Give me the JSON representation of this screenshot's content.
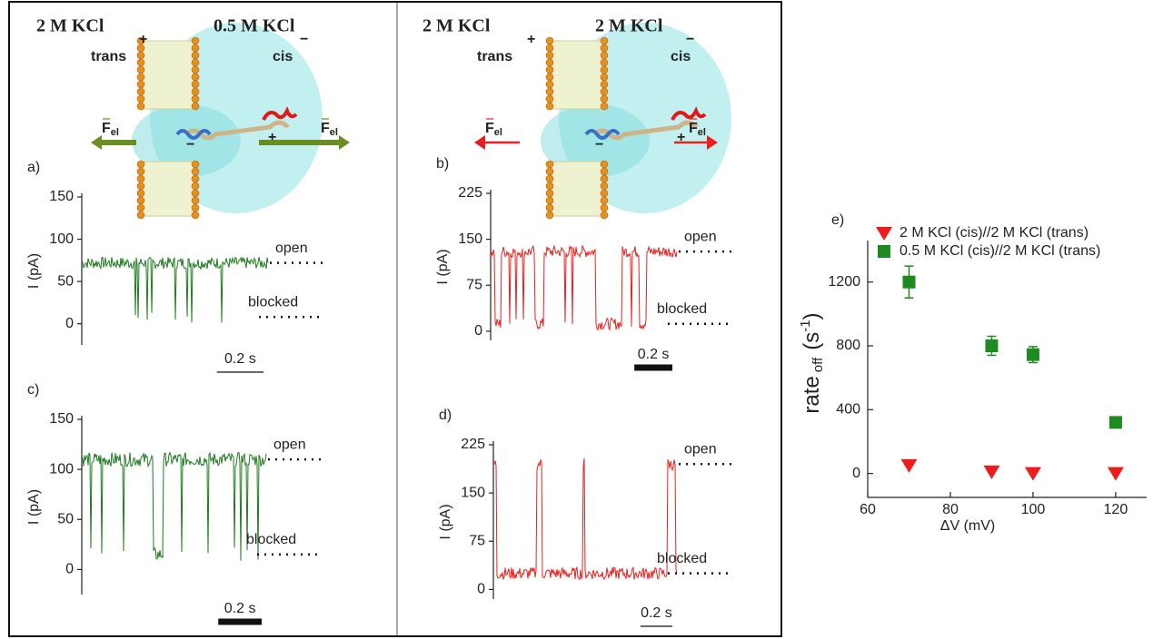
{
  "illustrations": [
    {
      "left_solution": "2 M KCl",
      "right_solution": "0.5 M KCl",
      "left_side": "trans",
      "right_side": "cis",
      "left_sign": "+",
      "right_sign": "−",
      "force": "F",
      "force_sub": "el",
      "color": "#6b8e23"
    },
    {
      "left_solution": "2 M KCl",
      "right_solution": "2 M KCl",
      "left_side": "trans",
      "right_side": "cis",
      "left_sign": "+",
      "right_sign": "−",
      "force": "F",
      "force_sub": "el",
      "color": "#e82020"
    }
  ],
  "chart_data": [
    {
      "type": "trace",
      "panel_label": "a)",
      "ylabel": "I (pA)",
      "ylim": [
        -25,
        150
      ],
      "yticks": [
        0,
        50,
        100,
        150
      ],
      "xlim": [
        0,
        0.8
      ],
      "color": "#1f7a1f",
      "baseline": "open",
      "open_level": 72,
      "blocked_level": 8,
      "open_label": "open",
      "blocked_label": "blocked",
      "scale_bar": {
        "value": 0.2,
        "label": "0.2 s"
      },
      "scale_bar_thick": false,
      "events": [
        0.23,
        0.24,
        0.28,
        0.3,
        0.4,
        0.45,
        0.47,
        0.6
      ],
      "durations": [
        0.004,
        0.004,
        0.004,
        0.004,
        0.004,
        0.004,
        0.004,
        0.004
      ]
    },
    {
      "type": "trace",
      "panel_label": "b)",
      "ylabel": "I (pA)",
      "ylim": [
        -15,
        225
      ],
      "yticks": [
        0,
        75,
        150,
        225
      ],
      "xlim": [
        0,
        0.98
      ],
      "color": "#e82020",
      "baseline": "open",
      "open_level": 130,
      "blocked_level": 12,
      "open_label": "open",
      "blocked_label": "blocked",
      "scale_bar": {
        "value": 0.2,
        "label": "0.2 s"
      },
      "scale_bar_thick": true,
      "events": [
        0.02,
        0.1,
        0.13,
        0.17,
        0.23,
        0.33,
        0.39,
        0.43,
        0.55,
        0.74,
        0.78
      ],
      "durations": [
        0.035,
        0.004,
        0.004,
        0.004,
        0.05,
        0.004,
        0.004,
        0.004,
        0.14,
        0.004,
        0.04
      ]
    },
    {
      "type": "trace",
      "panel_label": "c)",
      "ylabel": "I (pA)",
      "ylim": [
        -25,
        150
      ],
      "yticks": [
        0,
        50,
        100,
        150
      ],
      "xlim": [
        0,
        0.85
      ],
      "color": "#1f7a1f",
      "baseline": "open",
      "open_level": 110,
      "blocked_level": 15,
      "open_label": "open",
      "blocked_label": "blocked",
      "scale_bar": {
        "value": 0.2,
        "label": "0.2 s"
      },
      "scale_bar_thick": true,
      "events": [
        0.04,
        0.09,
        0.19,
        0.33,
        0.46,
        0.58,
        0.67,
        0.7,
        0.73,
        0.76,
        0.81
      ],
      "durations": [
        0.004,
        0.004,
        0.004,
        0.045,
        0.004,
        0.004,
        0.004,
        0.004,
        0.004,
        0.004,
        0.004
      ]
    },
    {
      "type": "trace",
      "panel_label": "d)",
      "ylabel": "I (pA)",
      "ylim": [
        -15,
        225
      ],
      "yticks": [
        0,
        75,
        150,
        225
      ],
      "xlim": [
        0,
        1.15
      ],
      "color": "#e82020",
      "baseline": "blocked",
      "open_level": 195,
      "blocked_level": 25,
      "open_label": "open",
      "blocked_label": "blocked",
      "scale_bar": {
        "value": 0.2,
        "label": "0.2 s"
      },
      "scale_bar_thick": false,
      "events": [
        0.0,
        0.27,
        0.56,
        1.09
      ],
      "durations": [
        0.02,
        0.035,
        0.01,
        0.05
      ]
    },
    {
      "type": "scatter",
      "panel_label": "e)",
      "xlabel": "ΔV (mV)",
      "ylabel_parts": [
        "rate",
        "off",
        "(s",
        "-1",
        ")"
      ],
      "xlim": [
        60,
        127.5
      ],
      "xticks": [
        60,
        80,
        100,
        120
      ],
      "ylim": [
        -150,
        1460
      ],
      "yticks": [
        0,
        400,
        800,
        1200
      ],
      "series": [
        {
          "name": "2 M KCl (cis)//2 M KCl (trans)",
          "color": "#ee1c1c",
          "marker": "triangle-down",
          "x": [
            70,
            90,
            100,
            120
          ],
          "values": [
            50,
            10,
            0,
            0
          ],
          "errors": [
            null,
            null,
            null,
            null
          ]
        },
        {
          "name": "0.5 M KCl (cis)//2 M KCl (trans)",
          "color": "#1f8a1f",
          "marker": "square",
          "x": [
            70,
            90,
            100,
            120
          ],
          "values": [
            1200,
            800,
            745,
            320
          ],
          "errors": [
            100,
            60,
            50,
            null
          ]
        }
      ]
    }
  ]
}
